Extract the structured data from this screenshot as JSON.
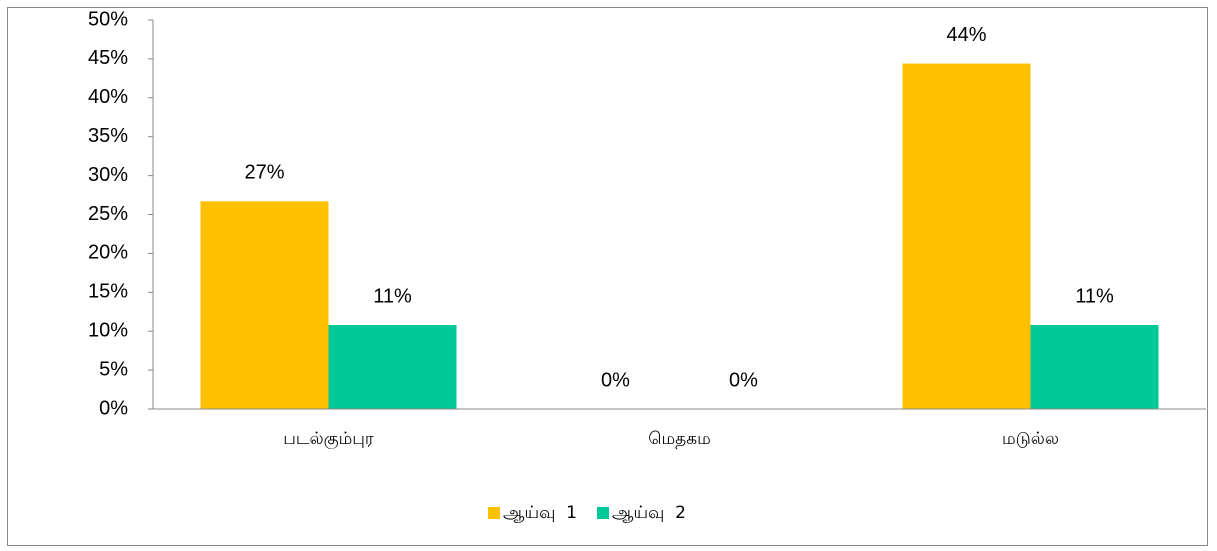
{
  "chart_data": {
    "type": "bar",
    "categories": [
      "படல்கும்புர",
      "மெதகம",
      "மடுல்ல"
    ],
    "series": [
      {
        "name": "ஆய்வு  1",
        "color": "#ffc000",
        "values": [
          26.7,
          0,
          44.4
        ],
        "value_labels": [
          "27%",
          "0%",
          "44%"
        ]
      },
      {
        "name": "ஆய்வு  2",
        "color": "#00c997",
        "values": [
          10.8,
          0,
          10.8
        ],
        "value_labels": [
          "11%",
          "0%",
          "11%"
        ]
      }
    ],
    "ylim": [
      0,
      50
    ],
    "yticks": [
      {
        "value": 0,
        "label": "0%"
      },
      {
        "value": 5,
        "label": "5%"
      },
      {
        "value": 10,
        "label": "10%"
      },
      {
        "value": 15,
        "label": "15%"
      },
      {
        "value": 20,
        "label": "20%"
      },
      {
        "value": 25,
        "label": "25%"
      },
      {
        "value": 30,
        "label": "30%"
      },
      {
        "value": 35,
        "label": "35%"
      },
      {
        "value": 40,
        "label": "40%"
      },
      {
        "value": 45,
        "label": "45%"
      },
      {
        "value": 50,
        "label": "50%"
      }
    ],
    "grid": false,
    "legend": "bottom"
  }
}
